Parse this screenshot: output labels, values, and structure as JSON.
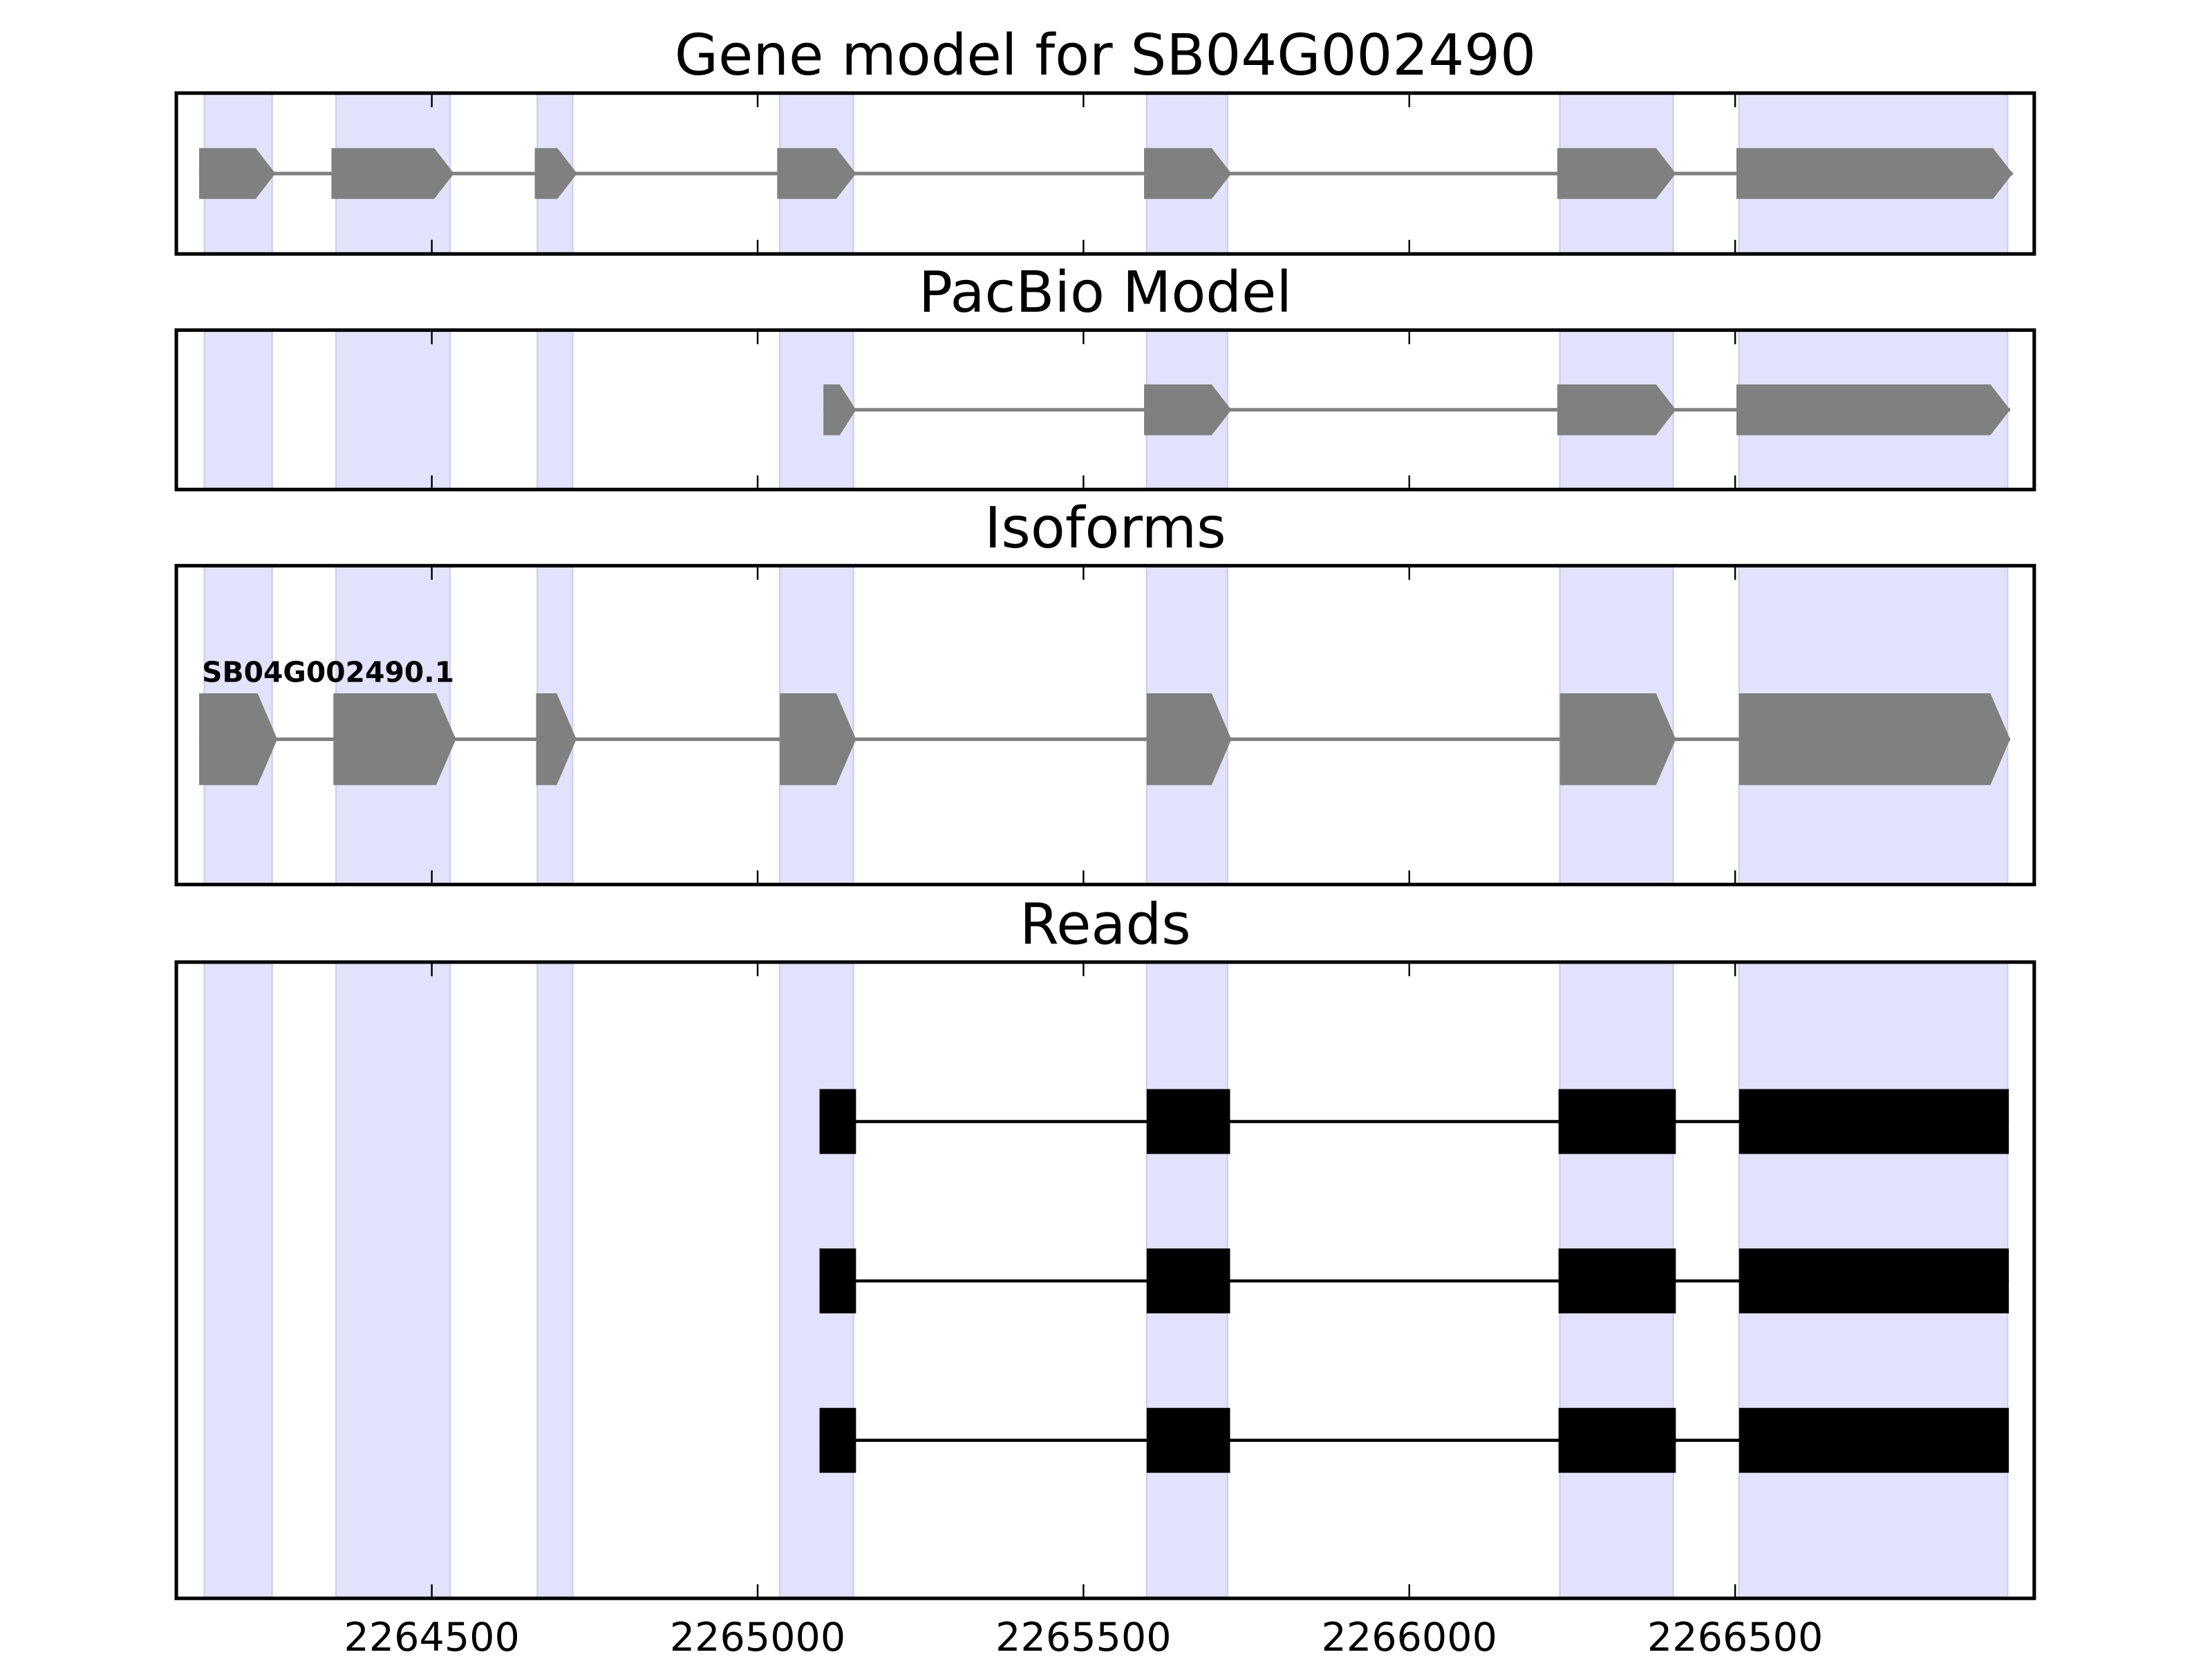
{
  "chart_data": {
    "type": "gene-track",
    "xlim": [
      2264108,
      2266959
    ],
    "xticks": [
      2264500,
      2265000,
      2265500,
      2266000,
      2266500
    ],
    "xtick_labels": [
      "2264500",
      "2265000",
      "2265500",
      "2266000",
      "2266500"
    ],
    "grid": false,
    "colors": {
      "highlight": "#e2e2fc",
      "exon": "#808080",
      "read": "#000000",
      "frame": "#000000"
    },
    "highlight_regions": [
      [
        2264151,
        2264255
      ],
      [
        2264353,
        2264528
      ],
      [
        2264662,
        2264716
      ],
      [
        2265034,
        2265147
      ],
      [
        2265597,
        2265721
      ],
      [
        2266231,
        2266405
      ],
      [
        2266506,
        2266918
      ]
    ],
    "panels": [
      {
        "title": "Gene model for SB04G002490",
        "kind": "gene",
        "models": [
          {
            "label": "",
            "exons": [
              [
                2264143,
                2264260
              ],
              [
                2264346,
                2264534
              ],
              [
                2264658,
                2264723
              ],
              [
                2265030,
                2265151
              ],
              [
                2265593,
                2265727
              ],
              [
                2266227,
                2266409
              ],
              [
                2266502,
                2266926
              ]
            ]
          }
        ]
      },
      {
        "title": "PacBio Model",
        "kind": "gene",
        "models": [
          {
            "label": "",
            "exons": [
              [
                2265101,
                2265151
              ],
              [
                2265593,
                2265727
              ],
              [
                2266227,
                2266409
              ],
              [
                2266502,
                2266922
              ]
            ]
          }
        ]
      },
      {
        "title": "Isoforms",
        "kind": "gene",
        "models": [
          {
            "label": "SB04G002490.1",
            "exons": [
              [
                2264143,
                2264263
              ],
              [
                2264349,
                2264537
              ],
              [
                2264660,
                2264722
              ],
              [
                2265034,
                2265151
              ],
              [
                2265597,
                2265727
              ],
              [
                2266231,
                2266409
              ],
              [
                2266506,
                2266922
              ]
            ]
          }
        ]
      },
      {
        "title": "Reads",
        "kind": "reads",
        "models": [
          {
            "label": "",
            "exons": [
              [
                2265095,
                2265151
              ],
              [
                2265597,
                2265725
              ],
              [
                2266229,
                2266409
              ],
              [
                2266506,
                2266920
              ]
            ]
          },
          {
            "label": "",
            "exons": [
              [
                2265095,
                2265151
              ],
              [
                2265597,
                2265725
              ],
              [
                2266229,
                2266409
              ],
              [
                2266506,
                2266920
              ]
            ]
          },
          {
            "label": "",
            "exons": [
              [
                2265095,
                2265151
              ],
              [
                2265597,
                2265725
              ],
              [
                2266229,
                2266409
              ],
              [
                2266506,
                2266920
              ]
            ]
          }
        ]
      }
    ]
  }
}
